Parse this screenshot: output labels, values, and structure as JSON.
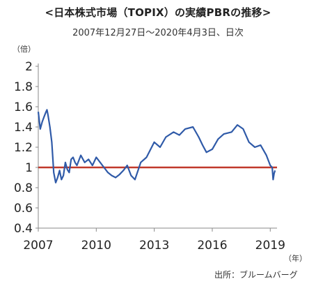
{
  "title": "<日本株式市場（TOPIX）の実績PBRの推移>",
  "subtitle": "2007年12月27日～2020年4月3日、日次",
  "unit_y": "（倍）",
  "unit_x": "（年）",
  "source": "出所：ブルームバーグ",
  "chart_data": {
    "type": "line",
    "title": "<日本株式市場（TOPIX）の実績PBRの推移>",
    "subtitle": "2007年12月27日～2020年4月3日、日次",
    "xlabel": "（年）",
    "ylabel": "（倍）",
    "ylim": [
      0.4,
      2.0
    ],
    "xlim": [
      2007,
      2019.35
    ],
    "yticks": [
      0.4,
      0.6,
      0.8,
      1,
      1.2,
      1.4,
      1.6,
      1.8,
      2
    ],
    "ytick_labels": [
      "0.4",
      "0.6",
      "0.8",
      "1",
      "1.2",
      "1.4",
      "1.6",
      "1.8",
      "2"
    ],
    "xticks": [
      2007,
      2010,
      2013,
      2016,
      2019
    ],
    "xtick_labels": [
      "2007",
      "2010",
      "2013",
      "2016",
      "2019"
    ],
    "grid": false,
    "legend": "none",
    "line_color": "#2f5aa8",
    "reference_color": "#c0392b",
    "reference_line": 1.0,
    "series": [
      {
        "x": [
          2007.0,
          2007.1,
          2007.2,
          2007.3,
          2007.4,
          2007.45,
          2007.5,
          2007.6,
          2007.7,
          2007.75,
          2007.8,
          2007.9,
          2008.0,
          2008.1,
          2008.2,
          2008.3,
          2008.4,
          2008.5,
          2008.6,
          2008.7,
          2008.8,
          2008.9,
          2009.0,
          2009.2,
          2009.4,
          2009.6,
          2009.8,
          2010.0,
          2010.2,
          2010.4,
          2010.6,
          2010.8,
          2011.0,
          2011.2,
          2011.4,
          2011.6,
          2011.8,
          2012.0,
          2012.3,
          2012.6,
          2013.0,
          2013.3,
          2013.6,
          2014.0,
          2014.3,
          2014.6,
          2015.0,
          2015.3,
          2015.5,
          2015.7,
          2016.0,
          2016.3,
          2016.6,
          2017.0,
          2017.3,
          2017.6,
          2017.9,
          2018.2,
          2018.5,
          2018.8,
          2019.0,
          2019.1,
          2019.15,
          2019.2,
          2019.25
        ],
        "values": [
          1.55,
          1.38,
          1.45,
          1.5,
          1.55,
          1.57,
          1.52,
          1.4,
          1.25,
          1.1,
          0.95,
          0.85,
          0.9,
          0.97,
          0.88,
          0.92,
          1.05,
          0.98,
          0.95,
          1.08,
          1.1,
          1.05,
          1.02,
          1.12,
          1.05,
          1.08,
          1.02,
          1.1,
          1.05,
          1.0,
          0.95,
          0.92,
          0.9,
          0.93,
          0.97,
          1.02,
          0.92,
          0.88,
          1.05,
          1.1,
          1.25,
          1.2,
          1.3,
          1.35,
          1.32,
          1.38,
          1.4,
          1.3,
          1.22,
          1.15,
          1.18,
          1.28,
          1.33,
          1.35,
          1.42,
          1.38,
          1.25,
          1.2,
          1.22,
          1.12,
          1.02,
          1.0,
          0.88,
          0.94,
          0.97
        ]
      }
    ]
  }
}
